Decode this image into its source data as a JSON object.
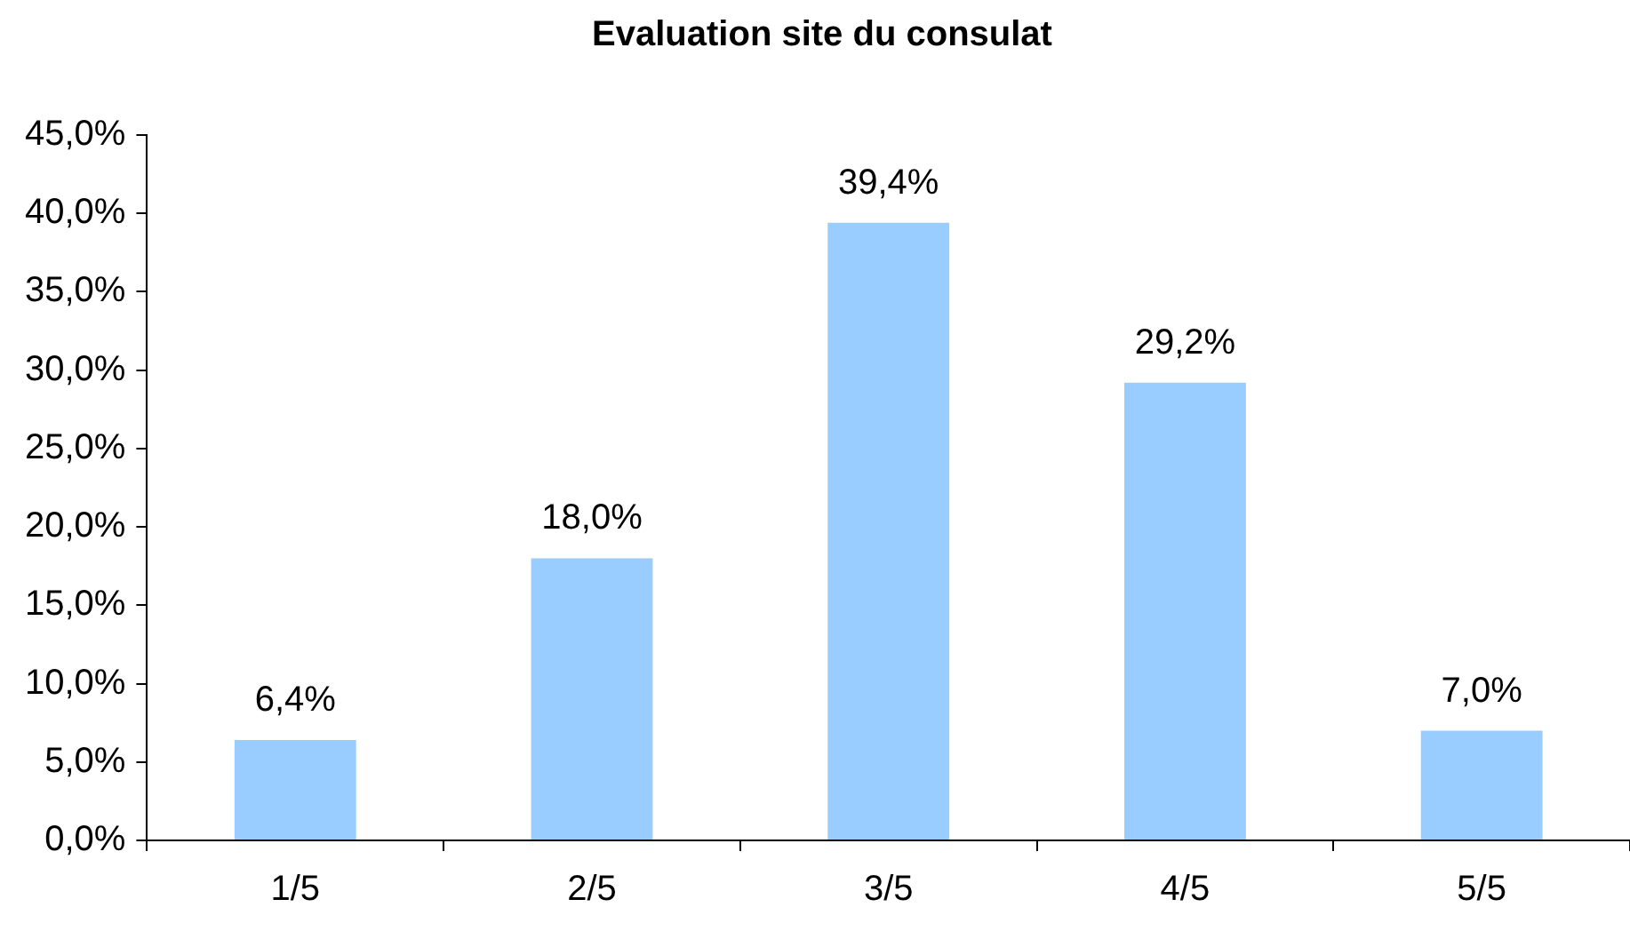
{
  "chart_data": {
    "type": "bar",
    "title": "Evaluation site du consulat",
    "categories": [
      "1/5",
      "2/5",
      "3/5",
      "4/5",
      "5/5"
    ],
    "values": [
      6.4,
      18.0,
      39.4,
      29.2,
      7.0
    ],
    "value_labels": [
      "6,4%",
      "18,0%",
      "39,4%",
      "29,2%",
      "7,0%"
    ],
    "color": "#99ccff",
    "ylim": [
      0,
      45
    ],
    "yticks": [
      {
        "value": 0,
        "label": "0,0%"
      },
      {
        "value": 5,
        "label": "5,0%"
      },
      {
        "value": 10,
        "label": "10,0%"
      },
      {
        "value": 15,
        "label": "15,0%"
      },
      {
        "value": 20,
        "label": "20,0%"
      },
      {
        "value": 25,
        "label": "25,0%"
      },
      {
        "value": 30,
        "label": "30,0%"
      },
      {
        "value": 35,
        "label": "35,0%"
      },
      {
        "value": 40,
        "label": "40,0%"
      },
      {
        "value": 45,
        "label": "45,0%"
      }
    ],
    "grid": false,
    "legend": false
  }
}
